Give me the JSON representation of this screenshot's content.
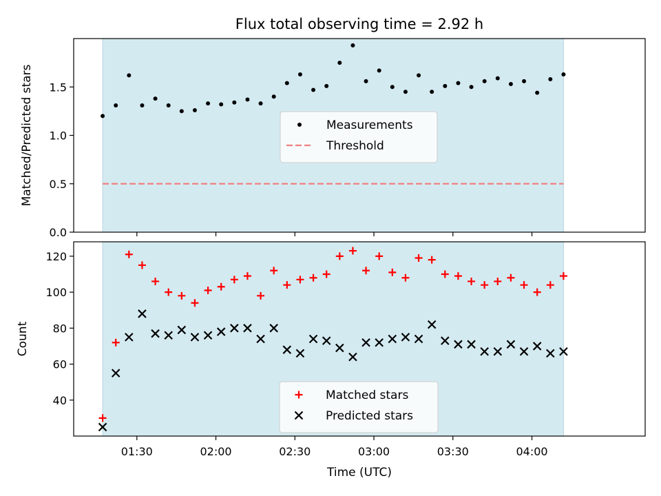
{
  "chart_data": [
    {
      "type": "scatter",
      "title": "Flux total observing time = 2.92 h",
      "ylabel": "Matched/Predicted stars",
      "xlabel": "",
      "ylim": [
        0,
        2.0
      ],
      "yticks": [
        0.0,
        0.5,
        1.0,
        1.5
      ],
      "ytick_labels": [
        "0.0",
        "0.5",
        "1.0",
        "1.5"
      ],
      "xlim_minutes": [
        66,
        283
      ],
      "shaded_span_minutes": [
        77,
        252
      ],
      "shade_color": "#d4eaf1",
      "legend_position": "center",
      "series": [
        {
          "name": "Measurements",
          "marker": "dot",
          "color": "#000000",
          "x": [
            "01:17",
            "01:22",
            "01:27",
            "01:32",
            "01:37",
            "01:42",
            "01:47",
            "01:52",
            "01:57",
            "02:02",
            "02:07",
            "02:12",
            "02:17",
            "02:22",
            "02:27",
            "02:32",
            "02:37",
            "02:42",
            "02:47",
            "02:52",
            "02:57",
            "03:02",
            "03:07",
            "03:12",
            "03:17",
            "03:22",
            "03:27",
            "03:32",
            "03:37",
            "03:42",
            "03:47",
            "03:52",
            "03:57",
            "04:02",
            "04:07",
            "04:12"
          ],
          "values": [
            1.2,
            1.31,
            1.62,
            1.31,
            1.38,
            1.31,
            1.25,
            1.26,
            1.33,
            1.32,
            1.34,
            1.37,
            1.33,
            1.4,
            1.54,
            1.63,
            1.47,
            1.51,
            1.75,
            1.93,
            1.56,
            1.67,
            1.5,
            1.45,
            1.62,
            1.45,
            1.51,
            1.54,
            1.5,
            1.56,
            1.59,
            1.53,
            1.56,
            1.44,
            1.58,
            1.63
          ]
        },
        {
          "name": "Threshold",
          "marker": "dashed-line",
          "color": "#f08080",
          "value": 0.5
        }
      ]
    },
    {
      "type": "scatter",
      "title": "",
      "ylabel": "Count",
      "xlabel": "Time (UTC)",
      "ylim": [
        20,
        128
      ],
      "yticks": [
        40,
        60,
        80,
        100,
        120
      ],
      "ytick_labels": [
        "40",
        "60",
        "80",
        "100",
        "120"
      ],
      "xticks": [
        "01:30",
        "02:00",
        "02:30",
        "03:00",
        "03:30",
        "04:00"
      ],
      "xlim_minutes": [
        66,
        283
      ],
      "shaded_span_minutes": [
        77,
        252
      ],
      "shade_color": "#d4eaf1",
      "legend_position": "lower center",
      "series": [
        {
          "name": "Matched stars",
          "marker": "plus",
          "color": "#ff0000",
          "x": [
            "01:17",
            "01:22",
            "01:27",
            "01:32",
            "01:37",
            "01:42",
            "01:47",
            "01:52",
            "01:57",
            "02:02",
            "02:07",
            "02:12",
            "02:17",
            "02:22",
            "02:27",
            "02:32",
            "02:37",
            "02:42",
            "02:47",
            "02:52",
            "02:57",
            "03:02",
            "03:07",
            "03:12",
            "03:17",
            "03:22",
            "03:27",
            "03:32",
            "03:37",
            "03:42",
            "03:47",
            "03:52",
            "03:57",
            "04:02",
            "04:07",
            "04:12"
          ],
          "values": [
            30,
            72,
            121,
            115,
            106,
            100,
            98,
            94,
            101,
            103,
            107,
            109,
            98,
            112,
            104,
            107,
            108,
            110,
            120,
            123,
            112,
            120,
            111,
            108,
            119,
            118,
            110,
            109,
            106,
            104,
            106,
            108,
            104,
            100,
            104,
            109
          ]
        },
        {
          "name": "Predicted stars",
          "marker": "x",
          "color": "#000000",
          "x": [
            "01:17",
            "01:22",
            "01:27",
            "01:32",
            "01:37",
            "01:42",
            "01:47",
            "01:52",
            "01:57",
            "02:02",
            "02:07",
            "02:12",
            "02:17",
            "02:22",
            "02:27",
            "02:32",
            "02:37",
            "02:42",
            "02:47",
            "02:52",
            "02:57",
            "03:02",
            "03:07",
            "03:12",
            "03:17",
            "03:22",
            "03:27",
            "03:32",
            "03:37",
            "03:42",
            "03:47",
            "03:52",
            "03:57",
            "04:02",
            "04:07",
            "04:12"
          ],
          "values": [
            25,
            55,
            75,
            88,
            77,
            76,
            79,
            75,
            76,
            78,
            80,
            80,
            74,
            80,
            68,
            66,
            74,
            73,
            69,
            64,
            72,
            72,
            74,
            75,
            74,
            82,
            73,
            71,
            71,
            67,
            67,
            71,
            67,
            70,
            66,
            67
          ]
        }
      ]
    }
  ]
}
